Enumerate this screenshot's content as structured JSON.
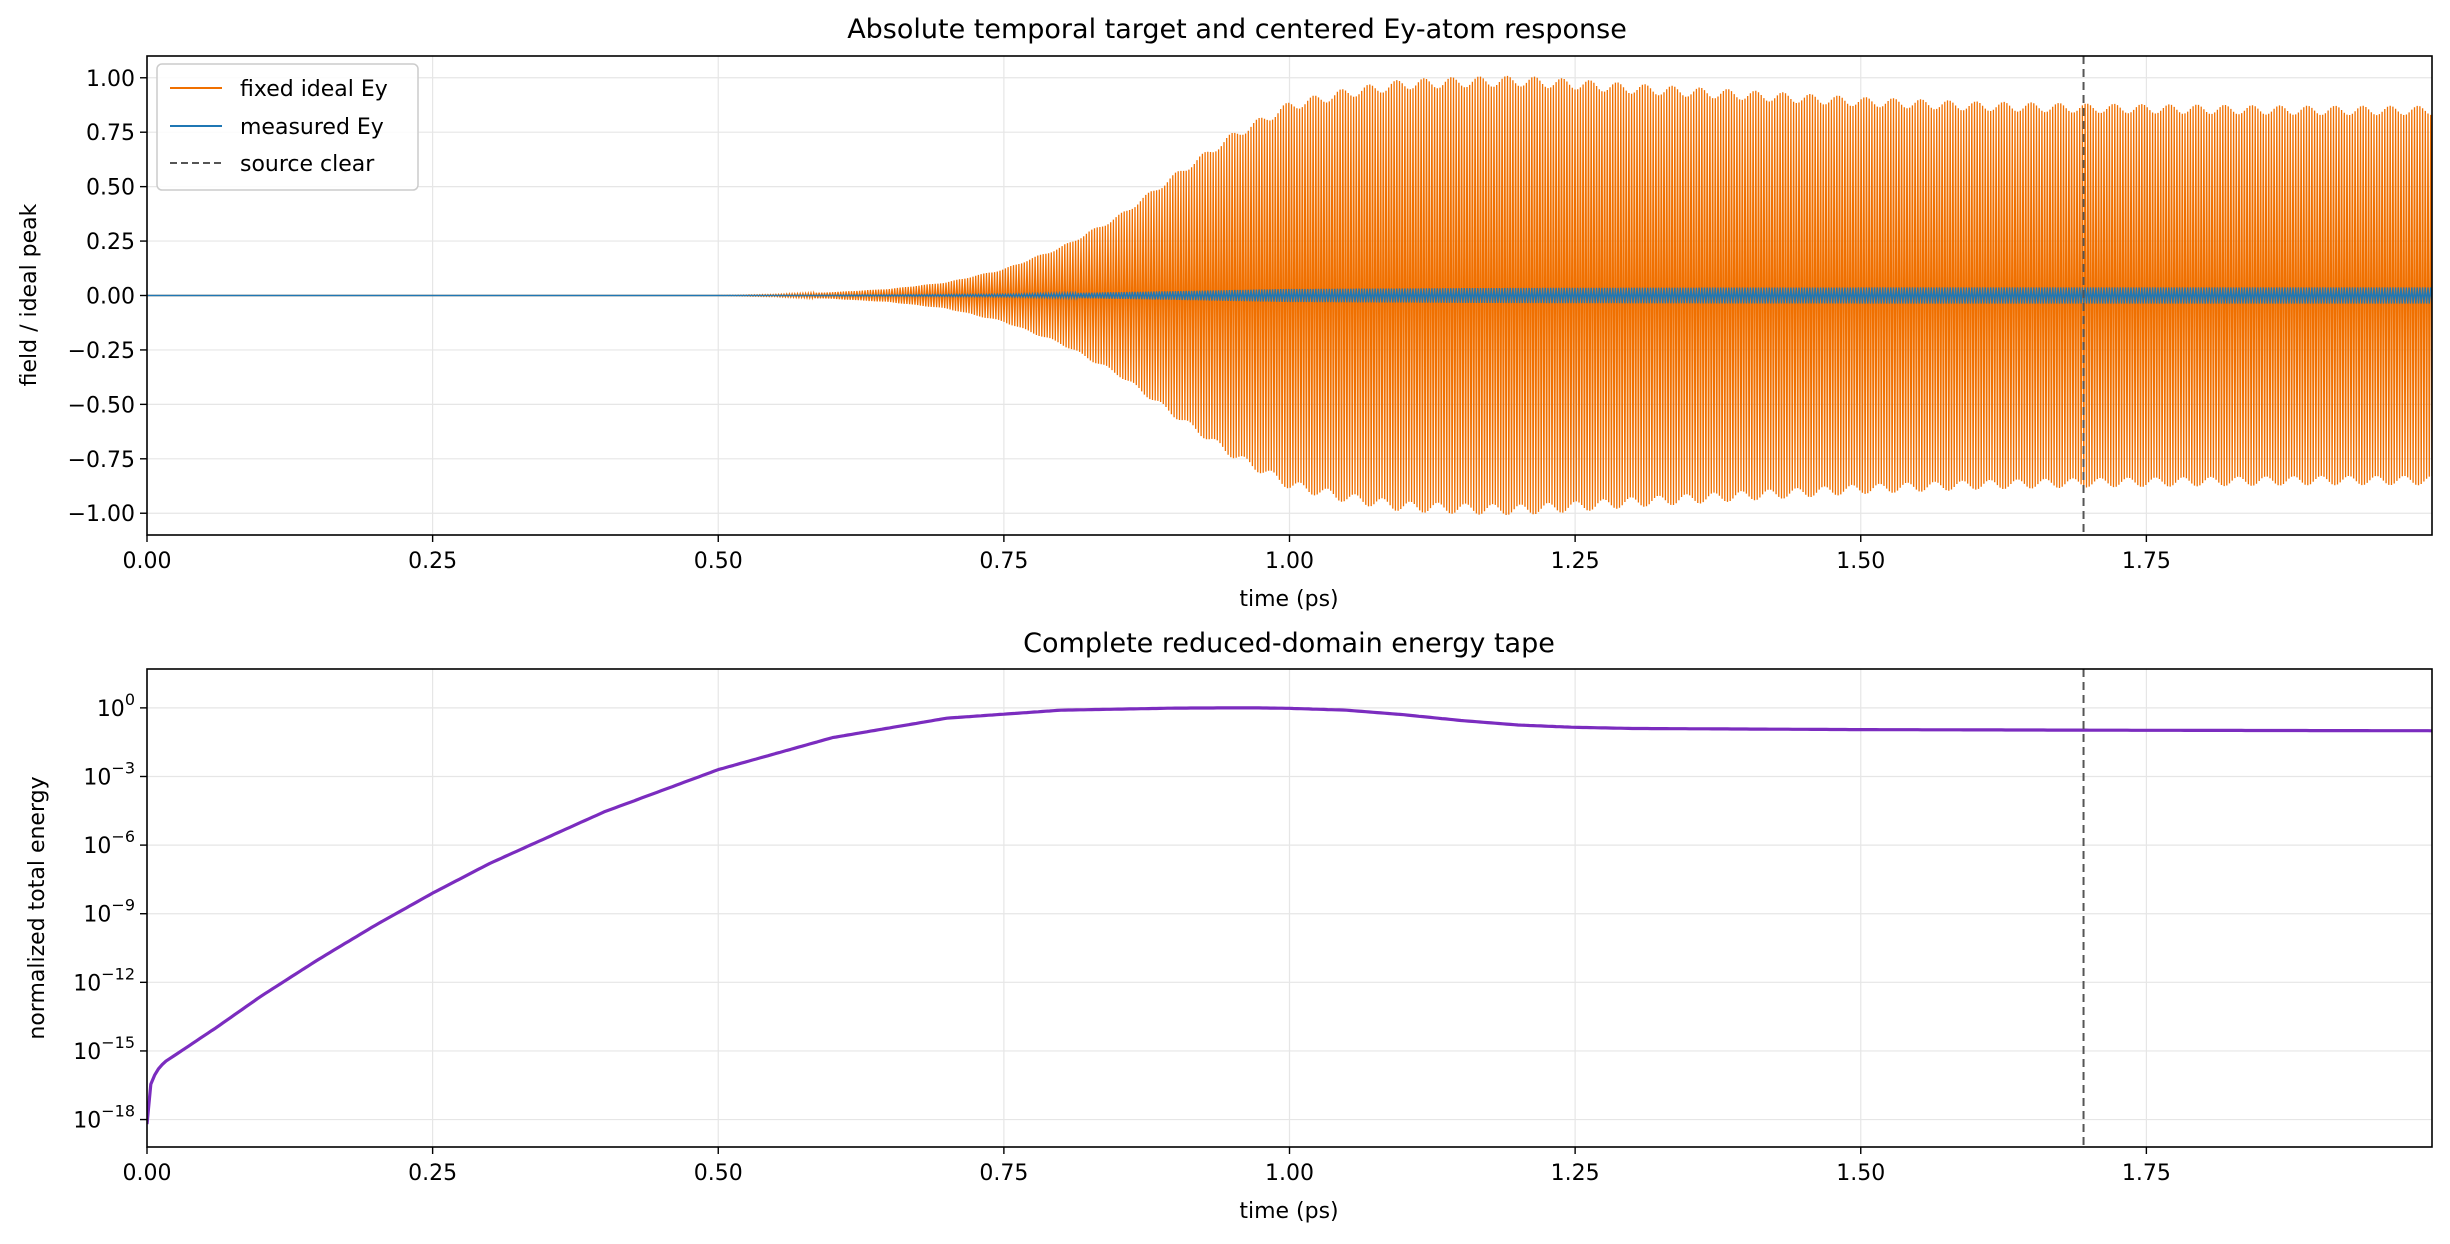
{
  "chart_data": [
    {
      "type": "line",
      "title": "Absolute temporal target and centered Ey-atom response",
      "xlabel": "time (ps)",
      "ylabel": "field / ideal peak",
      "xlim": [
        0,
        2.0
      ],
      "ylim": [
        -1.1,
        1.1
      ],
      "xticks": [
        "0.00",
        "0.25",
        "0.50",
        "0.75",
        "1.00",
        "1.25",
        "1.50",
        "1.75"
      ],
      "xtick_values": [
        0,
        0.25,
        0.5,
        0.75,
        1.0,
        1.25,
        1.5,
        1.75
      ],
      "yticks": [
        "1.00",
        "0.75",
        "0.50",
        "0.25",
        "0.00",
        "−0.25",
        "−0.50",
        "−0.75",
        "−1.00"
      ],
      "ytick_values": [
        1.0,
        0.75,
        0.5,
        0.25,
        0.0,
        -0.25,
        -0.5,
        -0.75,
        -1.0
      ],
      "grid": true,
      "legend_position": "top-left",
      "series": [
        {
          "name": "fixed ideal Ey",
          "color": "#f07000",
          "kind": "oscillating envelope",
          "envelope_t": [
            0.5,
            0.55,
            0.6,
            0.65,
            0.7,
            0.75,
            0.8,
            0.85,
            0.9,
            0.95,
            1.0,
            1.05,
            1.1,
            1.15,
            1.2,
            1.25,
            1.3,
            1.4,
            1.5,
            1.6,
            1.7,
            1.8,
            1.9,
            2.0
          ],
          "envelope_amplitude": [
            0.0,
            0.005,
            0.015,
            0.03,
            0.06,
            0.12,
            0.22,
            0.36,
            0.55,
            0.73,
            0.87,
            0.93,
            0.97,
            0.98,
            0.985,
            0.97,
            0.95,
            0.92,
            0.89,
            0.87,
            0.86,
            0.855,
            0.85,
            0.85
          ]
        },
        {
          "name": "measured Ey",
          "color": "#1f77b4",
          "kind": "oscillating envelope",
          "envelope_t": [
            0.5,
            0.75,
            0.9,
            1.0,
            1.2,
            1.5,
            2.0
          ],
          "envelope_amplitude": [
            0.0,
            0.006,
            0.02,
            0.03,
            0.035,
            0.037,
            0.037
          ]
        },
        {
          "name": "source clear",
          "color": "#555555",
          "kind": "vline",
          "x": 1.695
        }
      ]
    },
    {
      "type": "line",
      "title": "Complete reduced-domain energy tape",
      "xlabel": "time (ps)",
      "ylabel": "normalized total energy",
      "xlim": [
        0,
        2.0
      ],
      "ylim_log10": [
        -19.2,
        1.7
      ],
      "yscale": "log",
      "xticks": [
        "0.00",
        "0.25",
        "0.50",
        "0.75",
        "1.00",
        "1.25",
        "1.50",
        "1.75"
      ],
      "xtick_values": [
        0,
        0.25,
        0.5,
        0.75,
        1.0,
        1.25,
        1.5,
        1.75
      ],
      "ytick_exponents": [
        0,
        -3,
        -6,
        -9,
        -12,
        -15,
        -18
      ],
      "grid": true,
      "series": [
        {
          "color": "#7b2cbf",
          "x": [
            0.0,
            0.003,
            0.008,
            0.015,
            0.03,
            0.06,
            0.1,
            0.15,
            0.2,
            0.25,
            0.3,
            0.4,
            0.5,
            0.6,
            0.7,
            0.8,
            0.9,
            0.95,
            0.97,
            1.0,
            1.05,
            1.1,
            1.15,
            1.2,
            1.25,
            1.3,
            1.5,
            1.75,
            2.0
          ],
          "log10_y": [
            -18.2,
            -16.5,
            -15.9,
            -15.5,
            -15.0,
            -14.0,
            -12.6,
            -11.0,
            -9.5,
            -8.1,
            -6.8,
            -4.55,
            -2.7,
            -1.3,
            -0.45,
            -0.1,
            -0.01,
            0.0,
            0.0,
            -0.02,
            -0.1,
            -0.3,
            -0.55,
            -0.75,
            -0.85,
            -0.9,
            -0.95,
            -0.98,
            -1.0
          ]
        },
        {
          "name": "source clear",
          "color": "#555555",
          "kind": "vline",
          "x": 1.695
        }
      ]
    }
  ]
}
